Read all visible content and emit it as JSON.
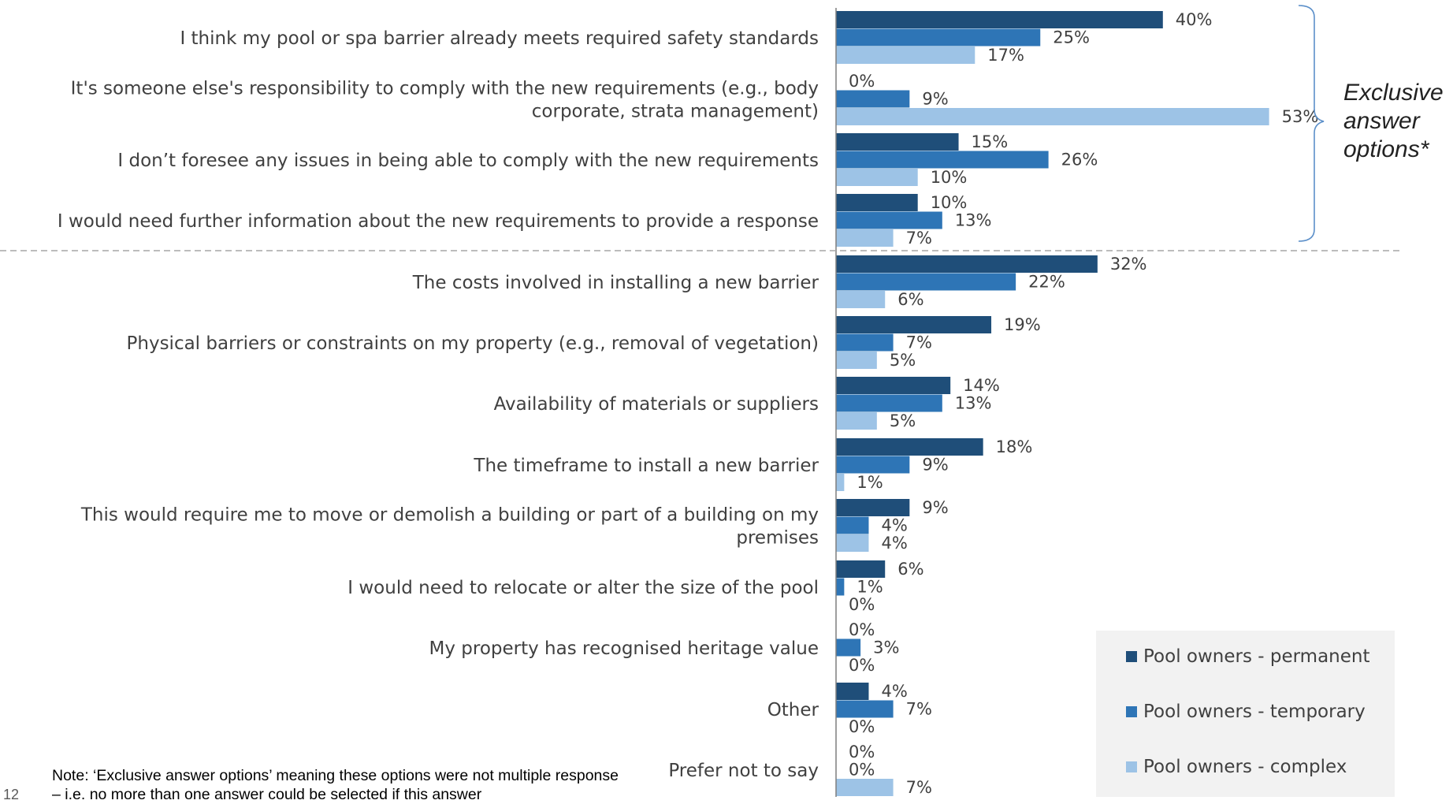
{
  "chart_data": {
    "type": "bar",
    "orientation": "horizontal",
    "categories": [
      "I think my pool or spa barrier already meets required safety standards",
      "It's someone else's responsibility to comply with the new requirements (e.g., body corporate, strata management)",
      "I don’t foresee any issues in being able to comply with the new requirements",
      "I would need further information about the new requirements to provide a response",
      "The costs involved in installing a new barrier",
      "Physical barriers or constraints on my property (e.g., removal of vegetation)",
      "Availability of materials or suppliers",
      "The timeframe to install a new barrier",
      "This would require me to move or demolish a building or part of a building on my premises",
      "I would need to relocate or alter the size of the pool",
      "My property has recognised heritage value",
      "Other",
      "Prefer not to say"
    ],
    "category_lines": [
      [
        "I think my pool or spa barrier already meets required safety standards"
      ],
      [
        "It's someone else's responsibility to comply with the new requirements (e.g., body",
        "corporate, strata management)"
      ],
      [
        "I don’t foresee any issues in being able to comply with the new requirements"
      ],
      [
        "I would need further information about the new requirements to provide a response"
      ],
      [
        "The costs involved in installing a new barrier"
      ],
      [
        "Physical barriers or constraints on my property (e.g., removal of vegetation)"
      ],
      [
        "Availability of materials or suppliers"
      ],
      [
        "The timeframe to install a new barrier"
      ],
      [
        "This would require me to move or demolish a building or part of a building on my",
        "premises"
      ],
      [
        "I would need to relocate or alter the size of the pool"
      ],
      [
        "My property has recognised heritage value"
      ],
      [
        "Other"
      ],
      [
        "Prefer not to say"
      ]
    ],
    "series": [
      {
        "name": "Pool owners - permanent",
        "color": "#1f4e79",
        "values": [
          40,
          0,
          15,
          10,
          32,
          19,
          14,
          18,
          9,
          6,
          0,
          4,
          0
        ]
      },
      {
        "name": "Pool owners - temporary",
        "color": "#2e75b6",
        "values": [
          25,
          9,
          26,
          13,
          22,
          7,
          13,
          9,
          4,
          1,
          3,
          7,
          0
        ]
      },
      {
        "name": "Pool owners - complex",
        "color": "#9dc3e6",
        "values": [
          17,
          53,
          10,
          7,
          6,
          5,
          5,
          1,
          4,
          0,
          0,
          0,
          7
        ]
      }
    ],
    "value_suffix": "%",
    "xlim": [
      0,
      60
    ],
    "grid": false,
    "legend_position": "bottom-right",
    "exclusive_group_count": 4,
    "exclusive_group_label": [
      "Exclusive",
      "answer",
      "options*"
    ]
  },
  "legend": {
    "items": [
      {
        "label": "Pool owners - permanent",
        "color": "#1f4e79"
      },
      {
        "label": "Pool owners - temporary",
        "color": "#2e75b6"
      },
      {
        "label": "Pool owners - complex",
        "color": "#9dc3e6"
      }
    ]
  },
  "note": "Note: ‘Exclusive answer options’ meaning these options were not multiple response – i.e. no more than one answer could be selected if this answer",
  "page_number": "12"
}
